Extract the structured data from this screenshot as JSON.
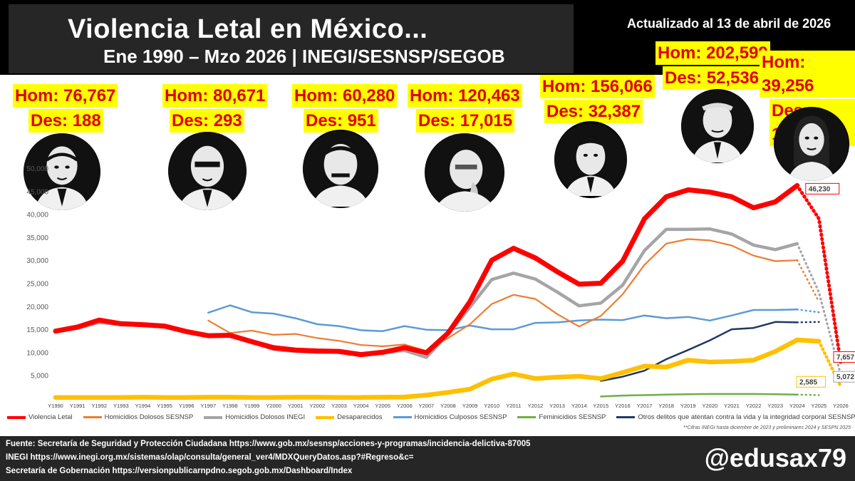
{
  "header": {
    "title": "Violencia Letal en México...",
    "subtitle": "Ene 1990 – Mzo 2026 | INEGI/SESNSP/SEGOB",
    "updated": "Actualizado al 13 de abril de 2026"
  },
  "stats": [
    {
      "hom": "Hom: 76,767",
      "des": "Des: 188"
    },
    {
      "hom": "Hom: 80,671",
      "des": "Des: 293"
    },
    {
      "hom": "Hom: 60,280",
      "des": "Des: 951"
    },
    {
      "hom": "Hom: 120,463",
      "des": "Des: 17,015"
    },
    {
      "hom": "Hom: 156,066",
      "des": "Des: 32,387"
    },
    {
      "hom": "Hom: 202,599",
      "des": "Des: 52,536"
    },
    {
      "hom": "Hom: 39,256",
      "des": "Des: 18,131"
    }
  ],
  "chart_data": {
    "type": "line",
    "x": [
      "Y1990",
      "Y1991",
      "Y1992",
      "Y1993",
      "Y1994",
      "Y1995",
      "Y1996",
      "Y1997",
      "Y1998",
      "Y1999",
      "Y2000",
      "Y2001",
      "Y2002",
      "Y2003",
      "Y2004",
      "Y2005",
      "Y2006",
      "Y2007",
      "Y2008",
      "Y2009",
      "Y2010",
      "Y2011",
      "Y2012",
      "Y2013",
      "Y2014",
      "Y2015",
      "Y2016",
      "Y2017",
      "Y2018",
      "Y2019",
      "Y2020",
      "Y2021",
      "Y2022",
      "Y2023",
      "Y2024",
      "Y2025",
      "Y2026"
    ],
    "ylim": [
      0,
      50000
    ],
    "yticks": [
      "5,000",
      "10,000",
      "15,000",
      "20,000",
      "25,000",
      "30,000",
      "35,000",
      "40,000",
      "45,000",
      "50,000"
    ],
    "grid": false,
    "legend_position": "bottom",
    "series": [
      {
        "name": "Violencia Letal",
        "color": "#ff0000",
        "dotted_from": 34,
        "values": [
          14600,
          15500,
          17000,
          16200,
          16000,
          15700,
          14500,
          13600,
          13700,
          12300,
          11000,
          10500,
          10300,
          10200,
          9500,
          10000,
          11000,
          9900,
          14200,
          21000,
          30000,
          32600,
          30500,
          27500,
          24800,
          25000,
          29800,
          39000,
          43800,
          45300,
          44800,
          43800,
          41400,
          42700,
          46230,
          39000,
          7657
        ]
      },
      {
        "name": "Homicidios Dolosos SESNSP",
        "color": "#ed7d31",
        "dotted_from": 34,
        "values": [
          null,
          null,
          null,
          null,
          null,
          null,
          null,
          16900,
          14200,
          14700,
          13800,
          14000,
          13100,
          12500,
          11600,
          11300,
          11700,
          10300,
          13100,
          16100,
          20500,
          22500,
          21600,
          18300,
          15600,
          17900,
          22600,
          29000,
          33600,
          34600,
          34300,
          33200,
          31000,
          29800,
          30000,
          21000,
          null
        ]
      },
      {
        "name": "Homicidios Dolosos INEGI",
        "color": "#a5a5a5",
        "dotted_from": 34,
        "values": [
          14500,
          15200,
          16500,
          16000,
          15800,
          15500,
          14500,
          13700,
          13500,
          12300,
          10600,
          10200,
          10000,
          10100,
          9300,
          9900,
          10400,
          8900,
          14000,
          19800,
          25800,
          27200,
          25900,
          23100,
          20100,
          20700,
          24600,
          32100,
          36700,
          36700,
          36800,
          35700,
          33300,
          32300,
          33600,
          23000,
          5072
        ]
      },
      {
        "name": "Desaparecidos",
        "color": "#ffc000",
        "dotted_from": 35,
        "values": [
          200,
          200,
          200,
          200,
          250,
          200,
          200,
          250,
          250,
          200,
          200,
          250,
          250,
          200,
          200,
          250,
          300,
          700,
          1300,
          2000,
          4200,
          5300,
          4300,
          4600,
          4800,
          4300,
          5600,
          7000,
          6800,
          8300,
          7900,
          8000,
          8300,
          10200,
          12700,
          12400,
          2585
        ]
      },
      {
        "name": "Homicidios Culposos SESNSP",
        "color": "#5b9bd5",
        "dotted_from": 34,
        "values": [
          null,
          null,
          null,
          null,
          null,
          null,
          null,
          18600,
          20200,
          18700,
          18400,
          17400,
          16100,
          15700,
          14800,
          14600,
          15700,
          14900,
          14800,
          15800,
          15000,
          15000,
          16400,
          16500,
          16900,
          17100,
          17000,
          18000,
          17400,
          17700,
          16900,
          18000,
          19200,
          19200,
          19300,
          18700,
          null
        ]
      },
      {
        "name": "Feminicidios SESNSP",
        "color": "#70ad47",
        "dotted_from": 34,
        "values": [
          null,
          null,
          null,
          null,
          null,
          null,
          null,
          null,
          null,
          null,
          null,
          null,
          null,
          null,
          null,
          null,
          null,
          null,
          null,
          null,
          null,
          null,
          null,
          null,
          null,
          400,
          600,
          700,
          800,
          900,
          950,
          950,
          950,
          900,
          800,
          700,
          null
        ]
      },
      {
        "name": "Otros delitos que atentan contra la vida y la integridad corporal SESNSP",
        "color": "#203864",
        "dotted_from": 34,
        "values": [
          null,
          null,
          null,
          null,
          null,
          null,
          null,
          null,
          null,
          null,
          null,
          null,
          null,
          null,
          null,
          null,
          null,
          null,
          null,
          null,
          null,
          null,
          null,
          null,
          null,
          3800,
          4700,
          6000,
          8500,
          10500,
          12600,
          15000,
          15300,
          16600,
          16500,
          16600,
          null
        ]
      }
    ],
    "data_labels": {
      "violencia": "46,230",
      "violencia_2026": "7,657",
      "inegi_2026": "5,072",
      "desaparecidos_2026": "2,585"
    }
  },
  "legend": [
    {
      "label": "Violencia Letal",
      "color": "#ff0000"
    },
    {
      "label": "Homicidios Dolosos SESNSP",
      "color": "#ed7d31"
    },
    {
      "label": "Homicidios Dolosos INEGI",
      "color": "#a5a5a5"
    },
    {
      "label": "Desaparecidos",
      "color": "#ffc000"
    },
    {
      "label": "Homicidios Culposos SESNSP",
      "color": "#5b9bd5"
    },
    {
      "label": "Feminicidios SESNSP",
      "color": "#70ad47"
    },
    {
      "label": "Otros delitos que atentan contra la vida y la integridad corporal SESNSP",
      "color": "#203864"
    }
  ],
  "note": "**Cifras INEGI hasta diciembre de 2023 y preliminares 2024 y SESPN 2025",
  "footer": {
    "source1": "Fuente: Secretaría de Seguridad y Protección Ciudadana https://www.gob.mx/sesnsp/acciones-y-programas/incidencia-delictiva-87005",
    "source2": "INEGI https://www.inegi.org.mx/sistemas/olap/consulta/general_ver4/MDXQueryDatos.asp?#Regreso&c=",
    "source3": "Secretaría de Gobernación https://versionpublicarnpdno.segob.gob.mx/Dashboard/Index",
    "handle": "@edusax79"
  }
}
